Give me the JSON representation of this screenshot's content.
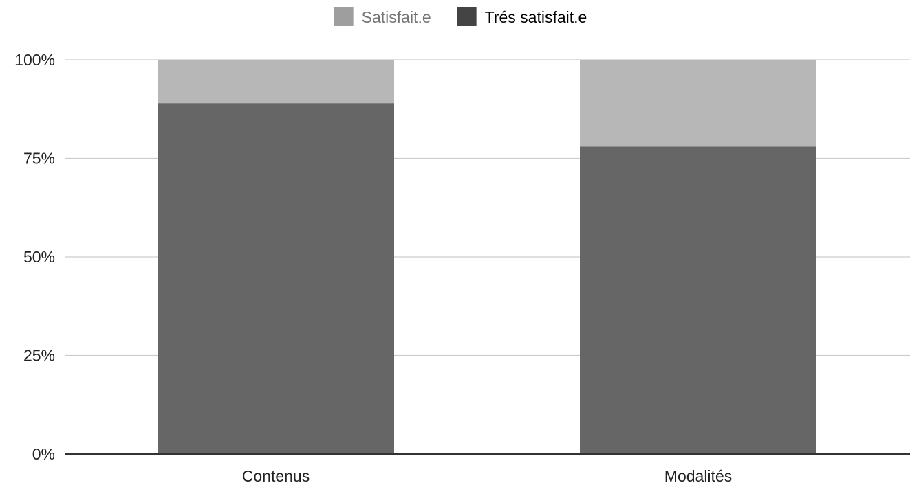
{
  "chart_data": {
    "type": "bar",
    "stacked": true,
    "percent_stacked": true,
    "categories": [
      "Contenus",
      "Modalités"
    ],
    "series": [
      {
        "name": "Trés satisfait.e",
        "values": [
          89,
          78
        ],
        "color": "#666666",
        "legend_color": "#444444",
        "legend_text_color": "#000000"
      },
      {
        "name": "Satisfait.e",
        "values": [
          11,
          22
        ],
        "color": "#b7b7b7",
        "legend_color": "#9e9e9e",
        "legend_text_color": "#757575"
      }
    ],
    "legend_order": [
      1,
      0
    ],
    "legend_position": "top-center",
    "ylim": [
      0,
      100
    ],
    "yticks": [
      0,
      25,
      50,
      75,
      100
    ],
    "ytick_labels": [
      "0%",
      "25%",
      "50%",
      "75%",
      "100%"
    ],
    "grid": true,
    "colors": {
      "gridline": "#cccccc",
      "axis_line": "#333333",
      "tick_text": "#222222"
    }
  }
}
